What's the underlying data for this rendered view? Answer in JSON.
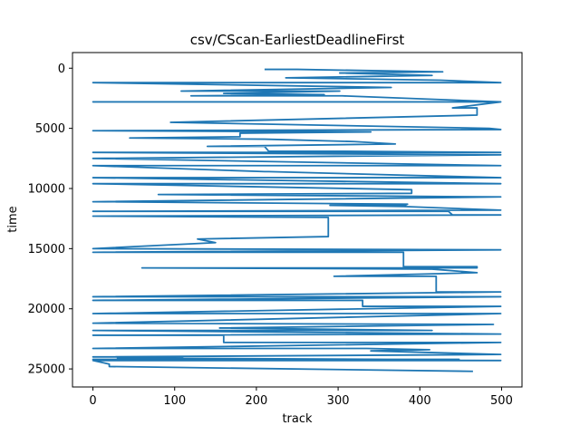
{
  "chart_data": {
    "type": "line",
    "title": "csv/CScan-EarliestDeadlineFirst",
    "xlabel": "track",
    "ylabel": "time",
    "xlim": [
      -25,
      525
    ],
    "ylim": [
      26500,
      -1300
    ],
    "y_inverted": true,
    "grid": false,
    "x_ticks": [
      0,
      100,
      200,
      300,
      400,
      500
    ],
    "y_ticks": [
      0,
      5000,
      10000,
      15000,
      20000,
      25000
    ],
    "x_tick_labels": [
      "0",
      "100",
      "200",
      "300",
      "400",
      "500"
    ],
    "y_tick_labels": [
      "0",
      "5000",
      "10000",
      "15000",
      "20000",
      "25000"
    ],
    "series": [
      {
        "color": "#1f77b4",
        "x": [
          210,
          250,
          428,
          302,
          415,
          236,
          425,
          499,
          0,
          365,
          108,
          302,
          160,
          283,
          120,
          305,
          499,
          0,
          499,
          440,
          470,
          470,
          95,
          485,
          499,
          0,
          340,
          180,
          180,
          45,
          210,
          320,
          370,
          140,
          210,
          215,
          295,
          499,
          0,
          499,
          0,
          499,
          0,
          210,
          215,
          499,
          0,
          499,
          0,
          390,
          390,
          80,
          499,
          0,
          385,
          382,
          290,
          380,
          499,
          0,
          435,
          440,
          499,
          0,
          288,
          288,
          128,
          150,
          0,
          499,
          0,
          380,
          380,
          470,
          470,
          60,
          415,
          470,
          295,
          420,
          420,
          499,
          0,
          499,
          0,
          330,
          330,
          499,
          0,
          499,
          0,
          490,
          155,
          415,
          0,
          499,
          0,
          160,
          160,
          499,
          0,
          335,
          412,
          340,
          499,
          0,
          110,
          30,
          360,
          360,
          448,
          0,
          499,
          0,
          20,
          20,
          465
        ],
        "y": [
          100,
          100,
          300,
          400,
          600,
          800,
          1000,
          1200,
          1200,
          1600,
          1900,
          1900,
          2100,
          2200,
          2300,
          2300,
          2800,
          2800,
          2800,
          3300,
          3300,
          3900,
          4500,
          5000,
          5100,
          5200,
          5300,
          5400,
          5700,
          5800,
          5900,
          6100,
          6300,
          6500,
          6500,
          6900,
          6900,
          7000,
          7000,
          7200,
          7500,
          8100,
          8100,
          8600,
          8600,
          9100,
          9100,
          9600,
          9600,
          10100,
          10400,
          10500,
          10700,
          11100,
          11300,
          11400,
          11400,
          11500,
          11800,
          11900,
          11900,
          12200,
          12200,
          12300,
          12400,
          14000,
          14200,
          14500,
          15000,
          15100,
          15300,
          15300,
          16500,
          16500,
          16600,
          16600,
          16700,
          17000,
          17300,
          17300,
          18600,
          18600,
          19000,
          19000,
          19300,
          19300,
          19800,
          19800,
          20400,
          20400,
          21200,
          21300,
          21600,
          21800,
          21800,
          22100,
          22200,
          22200,
          22800,
          22800,
          23300,
          23300,
          23400,
          23500,
          23800,
          24000,
          24000,
          24100,
          24200,
          24300,
          24200,
          24200,
          24300,
          24300,
          24600,
          24800,
          25200
        ]
      }
    ]
  }
}
